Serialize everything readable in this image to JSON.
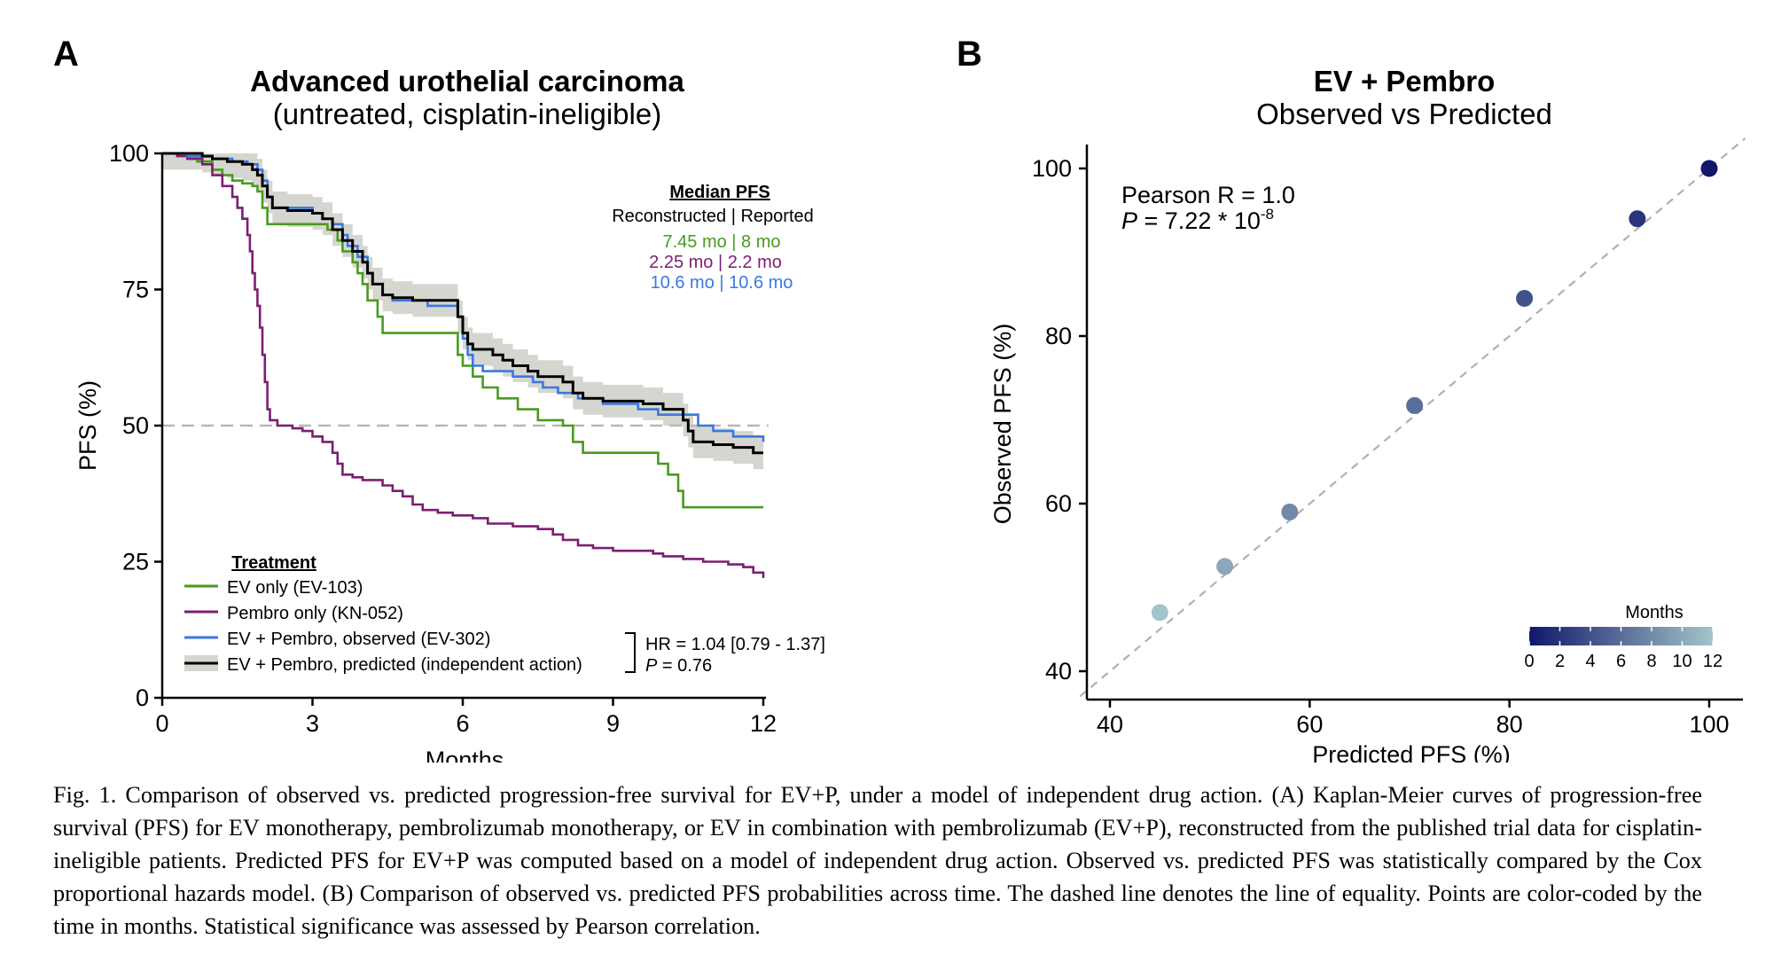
{
  "panel_a": {
    "letter": "A",
    "title": "Advanced urothelial carcinoma",
    "subtitle": "(untreated, cisplatin-ineligible)",
    "median_heading": "Median PFS",
    "median_subheading": "Reconstructed | Reported",
    "median_rows": [
      {
        "text": "7.45 mo | 8 mo",
        "color": "#4a9a1e"
      },
      {
        "text": "2.25 mo | 2.2 mo",
        "color": "#7b1e72"
      },
      {
        "text": "10.6 mo | 10.6 mo",
        "color": "#3a78e0"
      }
    ],
    "legend_title": "Treatment",
    "legend_items": [
      {
        "label": "EV only (EV-103)",
        "color": "#4a9a1e",
        "band": false
      },
      {
        "label": "Pembro only (KN-052)",
        "color": "#7b1e72",
        "band": false
      },
      {
        "label": "EV + Pembro, observed (EV-302)",
        "color": "#3a78e0",
        "band": false
      },
      {
        "label": "EV + Pembro, predicted (independent action)",
        "color": "#000000",
        "band": true
      }
    ],
    "hr_text": "HR = 1.04 [0.79 - 1.37]",
    "p_label": "P",
    "p_value": " = 0.76"
  },
  "panel_b": {
    "letter": "B",
    "title": "EV + Pembro",
    "subtitle": "Observed vs Predicted",
    "pearson_text": "Pearson R = 1.0",
    "p_label": "P",
    "p_value_text": " = 7.22 * 10",
    "p_exponent": "-8",
    "colorbar_title": "Months",
    "colorbar_ticks": [
      "0",
      "2",
      "4",
      "6",
      "8",
      "10",
      "12"
    ],
    "colorbar_colors": [
      "#10176a",
      "#a3c4c9"
    ]
  },
  "caption": "Fig. 1. Comparison of observed vs. predicted progression-free survival for EV+P, under a model of independent drug action. (A) Kaplan-Meier curves of progression-free survival (PFS) for EV monotherapy, pembrolizumab monotherapy, or EV in combination with pembrolizumab (EV+P), reconstructed from the published trial data for cisplatin-ineligible patients. Predicted PFS for EV+P was computed based on a model of independent drug action. Observed vs. predicted PFS was statistically compared by the Cox proportional hazards model. (B) Comparison of observed vs. predicted PFS probabilities across time. The dashed line denotes the line of equality. Points are color-coded by the time in months. Statistical significance was assessed by Pearson correlation.",
  "chart_data": [
    {
      "type": "line",
      "subtype": "kaplan-meier",
      "title": "Advanced urothelial carcinoma (untreated, cisplatin-ineligible)",
      "xlabel": "Months",
      "ylabel": "PFS (%)",
      "xlim": [
        0,
        12
      ],
      "ylim": [
        0,
        100
      ],
      "xticks": [
        0,
        3,
        6,
        9,
        12
      ],
      "yticks": [
        0,
        25,
        50,
        75,
        100
      ],
      "reference_line": {
        "y": 50,
        "style": "dashed"
      },
      "series": [
        {
          "name": "EV only (EV-103)",
          "color": "#4a9a1e",
          "points": [
            [
              0,
              100
            ],
            [
              0.3,
              100
            ],
            [
              0.5,
              99
            ],
            [
              0.7,
              98.5
            ],
            [
              1.0,
              97
            ],
            [
              1.2,
              96
            ],
            [
              1.4,
              95
            ],
            [
              1.6,
              94.5
            ],
            [
              1.8,
              94
            ],
            [
              1.9,
              93
            ],
            [
              2.0,
              90
            ],
            [
              2.1,
              87
            ],
            [
              2.6,
              87
            ],
            [
              3.1,
              87
            ],
            [
              3.3,
              86
            ],
            [
              3.5,
              84
            ],
            [
              3.6,
              82
            ],
            [
              3.8,
              80
            ],
            [
              3.9,
              78
            ],
            [
              4.0,
              76
            ],
            [
              4.1,
              73
            ],
            [
              4.3,
              70
            ],
            [
              4.4,
              67
            ],
            [
              5.4,
              67
            ],
            [
              5.8,
              67
            ],
            [
              5.9,
              63
            ],
            [
              6.0,
              61
            ],
            [
              6.2,
              59
            ],
            [
              6.4,
              57
            ],
            [
              6.7,
              55
            ],
            [
              7.1,
              53
            ],
            [
              7.5,
              51
            ],
            [
              8.0,
              50
            ],
            [
              8.2,
              47
            ],
            [
              8.4,
              45
            ],
            [
              9.4,
              45
            ],
            [
              9.7,
              45
            ],
            [
              9.9,
              43
            ],
            [
              10.1,
              41
            ],
            [
              10.3,
              38
            ],
            [
              10.4,
              35
            ],
            [
              12,
              35
            ]
          ]
        },
        {
          "name": "Pembro only (KN-052)",
          "color": "#7b1e72",
          "points": [
            [
              0,
              100
            ],
            [
              0.3,
              99.5
            ],
            [
              0.5,
              99
            ],
            [
              0.8,
              98
            ],
            [
              1.0,
              96
            ],
            [
              1.2,
              94
            ],
            [
              1.4,
              92
            ],
            [
              1.5,
              90
            ],
            [
              1.6,
              88
            ],
            [
              1.7,
              85
            ],
            [
              1.75,
              82
            ],
            [
              1.8,
              78
            ],
            [
              1.85,
              75
            ],
            [
              1.9,
              72
            ],
            [
              1.95,
              68
            ],
            [
              2.0,
              63
            ],
            [
              2.05,
              58
            ],
            [
              2.1,
              53
            ],
            [
              2.15,
              51
            ],
            [
              2.3,
              50
            ],
            [
              2.5,
              50
            ],
            [
              2.6,
              49.5
            ],
            [
              2.8,
              49
            ],
            [
              3.0,
              48
            ],
            [
              3.2,
              47
            ],
            [
              3.4,
              45
            ],
            [
              3.5,
              43
            ],
            [
              3.6,
              41
            ],
            [
              3.8,
              40.5
            ],
            [
              4.0,
              40
            ],
            [
              4.4,
              39
            ],
            [
              4.6,
              38
            ],
            [
              4.8,
              37
            ],
            [
              5.0,
              35.5
            ],
            [
              5.2,
              34.5
            ],
            [
              5.5,
              34
            ],
            [
              5.8,
              33.5
            ],
            [
              6.2,
              33
            ],
            [
              6.5,
              32
            ],
            [
              7.0,
              31.5
            ],
            [
              7.5,
              31
            ],
            [
              7.8,
              30
            ],
            [
              8.0,
              29
            ],
            [
              8.3,
              28
            ],
            [
              8.6,
              27.5
            ],
            [
              9.0,
              27
            ],
            [
              9.4,
              27
            ],
            [
              9.8,
              26.5
            ],
            [
              10.0,
              26
            ],
            [
              10.4,
              25.5
            ],
            [
              10.8,
              25
            ],
            [
              11.3,
              24.5
            ],
            [
              11.6,
              24
            ],
            [
              11.8,
              23
            ],
            [
              12,
              22
            ]
          ]
        },
        {
          "name": "EV + Pembro, observed (EV-302)",
          "color": "#3a78e0",
          "points": [
            [
              0,
              100
            ],
            [
              0.5,
              99.5
            ],
            [
              1.0,
              99
            ],
            [
              1.4,
              98.5
            ],
            [
              1.7,
              98
            ],
            [
              1.9,
              97
            ],
            [
              2.0,
              95
            ],
            [
              2.1,
              92
            ],
            [
              2.2,
              90
            ],
            [
              2.6,
              90
            ],
            [
              3.0,
              89
            ],
            [
              3.2,
              88
            ],
            [
              3.4,
              87
            ],
            [
              3.6,
              85
            ],
            [
              3.7,
              83
            ],
            [
              3.9,
              81
            ],
            [
              4.1,
              78
            ],
            [
              4.2,
              76
            ],
            [
              4.4,
              74
            ],
            [
              4.6,
              73
            ],
            [
              5.3,
              72
            ],
            [
              5.8,
              72
            ],
            [
              5.9,
              70
            ],
            [
              6.0,
              66
            ],
            [
              6.1,
              63
            ],
            [
              6.2,
              61
            ],
            [
              6.4,
              60
            ],
            [
              6.8,
              60
            ],
            [
              7.0,
              59
            ],
            [
              7.4,
              58
            ],
            [
              7.6,
              57
            ],
            [
              7.9,
              56
            ],
            [
              8.3,
              55
            ],
            [
              8.8,
              54
            ],
            [
              9.5,
              53
            ],
            [
              9.9,
              52
            ],
            [
              10.2,
              52
            ],
            [
              10.6,
              52
            ],
            [
              10.7,
              50
            ],
            [
              11.0,
              49
            ],
            [
              11.4,
              48
            ],
            [
              12,
              47
            ]
          ]
        },
        {
          "name": "EV + Pembro, predicted (independent action)",
          "color": "#000000",
          "points": [
            [
              0,
              100
            ],
            [
              0.5,
              100
            ],
            [
              0.8,
              99.5
            ],
            [
              1.0,
              99
            ],
            [
              1.3,
              98.5
            ],
            [
              1.6,
              98
            ],
            [
              1.8,
              97
            ],
            [
              1.9,
              96
            ],
            [
              2.0,
              94
            ],
            [
              2.1,
              92
            ],
            [
              2.2,
              90
            ],
            [
              2.5,
              89.5
            ],
            [
              3.0,
              89
            ],
            [
              3.2,
              88
            ],
            [
              3.4,
              86
            ],
            [
              3.6,
              84
            ],
            [
              3.8,
              82
            ],
            [
              4.0,
              80
            ],
            [
              4.1,
              78
            ],
            [
              4.2,
              76
            ],
            [
              4.4,
              74
            ],
            [
              4.6,
              73.5
            ],
            [
              5.0,
              73
            ],
            [
              5.8,
              73
            ],
            [
              5.9,
              70
            ],
            [
              6.0,
              67
            ],
            [
              6.1,
              65
            ],
            [
              6.2,
              64
            ],
            [
              6.6,
              63
            ],
            [
              6.8,
              62
            ],
            [
              7.0,
              61
            ],
            [
              7.3,
              60
            ],
            [
              7.5,
              59
            ],
            [
              8.0,
              58
            ],
            [
              8.2,
              56
            ],
            [
              8.4,
              55
            ],
            [
              8.8,
              54.5
            ],
            [
              9.6,
              54
            ],
            [
              9.9,
              54
            ],
            [
              10.0,
              53
            ],
            [
              10.2,
              53
            ],
            [
              10.4,
              51
            ],
            [
              10.5,
              49
            ],
            [
              10.6,
              47
            ],
            [
              11.0,
              46.5
            ],
            [
              11.4,
              46
            ],
            [
              11.8,
              45
            ],
            [
              12,
              45
            ]
          ]
        }
      ],
      "band": {
        "series": "EV + Pembro, predicted (independent action)",
        "color": "#d6d6d0",
        "half_width": 3
      }
    },
    {
      "type": "scatter",
      "title": "EV + Pembro Observed vs Predicted",
      "xlabel": "Predicted PFS (%)",
      "ylabel": "Observed PFS (%)",
      "xlim": [
        37,
        103
      ],
      "ylim": [
        37,
        103
      ],
      "xticks": [
        40,
        60,
        80,
        100
      ],
      "yticks": [
        40,
        60,
        80,
        100
      ],
      "identity_line": true,
      "points": [
        {
          "months": 12,
          "x": 45,
          "y": 47
        },
        {
          "months": 10,
          "x": 51.5,
          "y": 52.5
        },
        {
          "months": 8,
          "x": 58,
          "y": 59
        },
        {
          "months": 6,
          "x": 70.5,
          "y": 71.7
        },
        {
          "months": 4,
          "x": 81.5,
          "y": 84.5
        },
        {
          "months": 2,
          "x": 92.8,
          "y": 94
        },
        {
          "months": 0,
          "x": 100,
          "y": 100
        }
      ],
      "color_scale": {
        "label": "Months",
        "range": [
          0,
          12
        ]
      }
    }
  ]
}
